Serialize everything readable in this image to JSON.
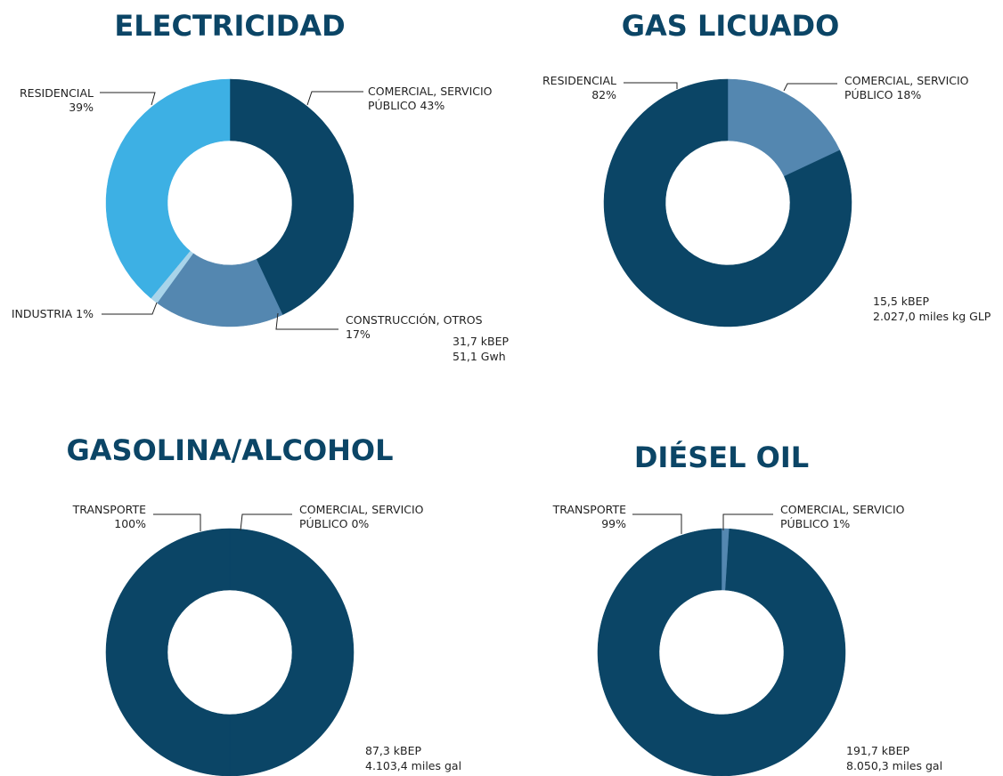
{
  "chart_data": [
    {
      "type": "donut",
      "title": "ELECTRICIDAD",
      "categories": [
        "COMERCIAL, SERVICIO PÚBLICO",
        "CONSTRUCCIÓN, OTROS",
        "INDUSTRIA",
        "RESIDENCIAL"
      ],
      "values": [
        43,
        17,
        1,
        39
      ],
      "value_labels": [
        "43%",
        "17%",
        "1%",
        "39%"
      ],
      "colors": [
        "#0b4566",
        "#5487b0",
        "#a8d4ea",
        "#3db0e4"
      ],
      "annotations": [
        "31,7 kBEP",
        "51,1 Gwh"
      ]
    },
    {
      "type": "donut",
      "title": "GAS LICUADO",
      "categories": [
        "COMERCIAL, SERVICIO PÚBLICO",
        "RESIDENCIAL"
      ],
      "values": [
        18,
        82
      ],
      "value_labels": [
        "18%",
        "82%"
      ],
      "colors": [
        "#5487b0",
        "#0b4566"
      ],
      "annotations": [
        "15,5 kBEP",
        "2.027,0 miles kg GLP"
      ]
    },
    {
      "type": "donut",
      "title": "GASOLINA/ALCOHOL",
      "categories": [
        "COMERCIAL, SERVICIO PÚBLICO",
        "TRANSPORTE"
      ],
      "values": [
        0,
        100
      ],
      "value_labels": [
        "0%",
        "100%"
      ],
      "colors": [
        "#5487b0",
        "#0b4566"
      ],
      "annotations": [
        "87,3 kBEP",
        "4.103,4 miles gal"
      ]
    },
    {
      "type": "donut",
      "title": "DIÉSEL OIL",
      "categories": [
        "COMERCIAL, SERVICIO PÚBLICO",
        "TRANSPORTE"
      ],
      "values": [
        1,
        99
      ],
      "value_labels": [
        "1%",
        "99%"
      ],
      "colors": [
        "#5487b0",
        "#0b4566"
      ],
      "annotations": [
        "191,7 kBEP",
        "8.050,3 miles gal"
      ]
    }
  ]
}
